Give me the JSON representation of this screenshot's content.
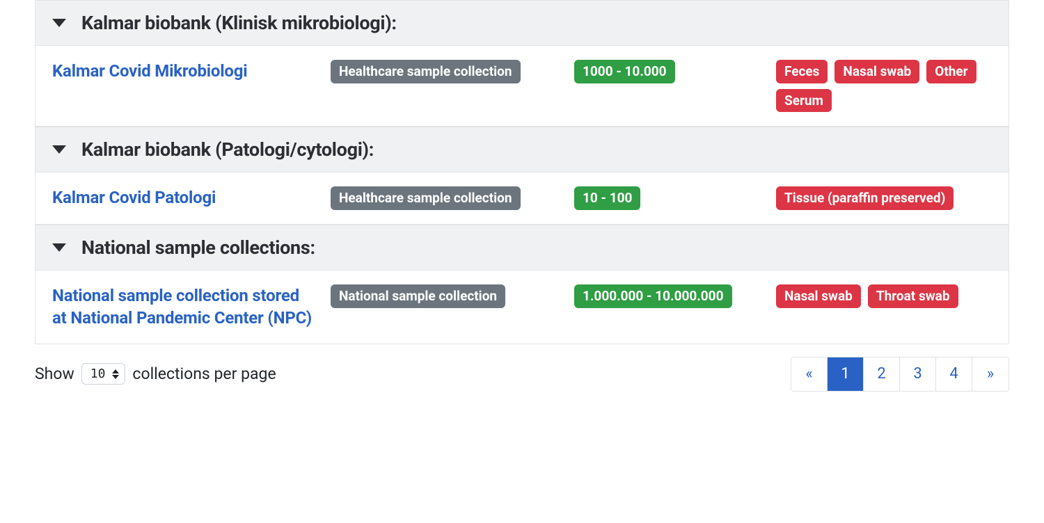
{
  "colors": {
    "link": "#2962c4",
    "badge_gray": "#6c757d",
    "badge_green": "#2f9e44",
    "badge_red": "#dc3545",
    "header_bg": "#f0f1f2",
    "border": "#e1e3e5"
  },
  "groups": [
    {
      "title": "Kalmar biobank (Klinisk mikrobiologi):",
      "items": [
        {
          "name": "Kalmar Covid Mikrobiologi",
          "type": "Healthcare sample collection",
          "size": "1000 - 10.000",
          "tags": [
            "Feces",
            "Nasal swab",
            "Other",
            "Serum"
          ]
        }
      ]
    },
    {
      "title": "Kalmar biobank (Patologi/cytologi):",
      "items": [
        {
          "name": "Kalmar Covid Patologi",
          "type": "Healthcare sample collection",
          "size": "10 - 100",
          "tags": [
            "Tissue (paraffin preserved)"
          ]
        }
      ]
    },
    {
      "title": "National sample collections:",
      "items": [
        {
          "name": "National sample collection stored at National Pandemic Center (NPC)",
          "type": "National sample collection",
          "size": "1.000.000 - 10.000.000",
          "tags": [
            "Nasal swab",
            "Throat swab"
          ]
        }
      ]
    }
  ],
  "footer": {
    "show_label": "Show",
    "per_page_value": "10",
    "suffix_label": "collections per page"
  },
  "pagination": {
    "prev": "«",
    "next": "»",
    "pages": [
      "1",
      "2",
      "3",
      "4"
    ],
    "active": "1"
  }
}
